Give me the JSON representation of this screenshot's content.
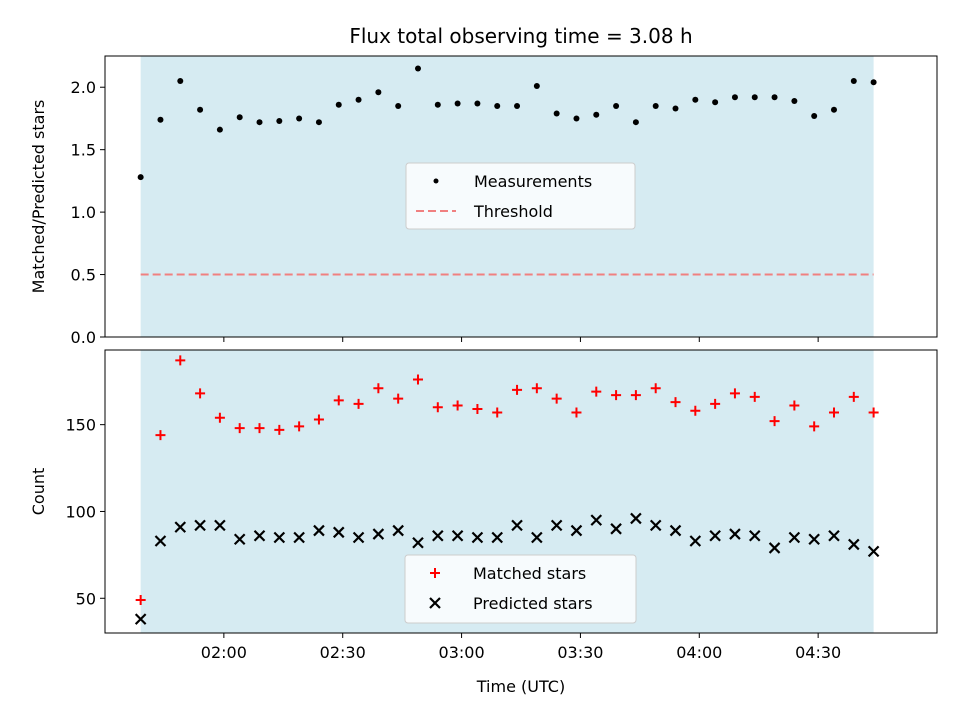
{
  "chart_data": {
    "type": "scatter",
    "title": "Flux total observing time = 3.08 h",
    "xlabel": "Time (UTC)",
    "x_tick_labels": [
      "02:00",
      "02:30",
      "03:00",
      "03:30",
      "04:00",
      "04:30"
    ],
    "x_ticks": [
      "02:00",
      "02:30",
      "03:00",
      "03:30",
      "04:00",
      "04:30"
    ],
    "xlim": [
      "01:30",
      "05:00"
    ],
    "shaded_region": {
      "start": "01:39",
      "end": "04:44",
      "color": "#add8e6"
    },
    "time_points": [
      "01:39",
      "01:44",
      "01:49",
      "01:54",
      "01:59",
      "02:04",
      "02:09",
      "02:14",
      "02:19",
      "02:24",
      "02:29",
      "02:34",
      "02:39",
      "02:44",
      "02:49",
      "02:54",
      "02:59",
      "03:04",
      "03:09",
      "03:14",
      "03:19",
      "03:24",
      "03:29",
      "03:34",
      "03:39",
      "03:44",
      "03:49",
      "03:54",
      "03:59",
      "04:04",
      "04:09",
      "04:14",
      "04:19",
      "04:24",
      "04:29",
      "04:34",
      "04:39",
      "04:44"
    ],
    "panels": [
      {
        "ylabel": "Matched/Predicted stars",
        "ylim": [
          0,
          2.25
        ],
        "y_ticks": [
          0.0,
          0.5,
          1.0,
          1.5,
          2.0
        ],
        "y_tick_labels": [
          "0.0",
          "0.5",
          "1.0",
          "1.5",
          "2.0"
        ],
        "legend_position": "center",
        "series": [
          {
            "name": "Measurements",
            "marker": "dot",
            "color": "#000000",
            "values": [
              1.28,
              1.74,
              2.05,
              1.82,
              1.66,
              1.76,
              1.72,
              1.73,
              1.75,
              1.72,
              1.86,
              1.9,
              1.96,
              1.85,
              2.15,
              1.86,
              1.87,
              1.87,
              1.85,
              1.85,
              2.01,
              1.79,
              1.75,
              1.78,
              1.85,
              1.72,
              1.85,
              1.83,
              1.9,
              1.88,
              1.92,
              1.92,
              1.92,
              1.89,
              1.77,
              1.82,
              2.05,
              2.04
            ]
          },
          {
            "name": "Threshold",
            "marker": "dashed-line",
            "color": "#f08080",
            "values": [
              0.5,
              0.5
            ]
          }
        ]
      },
      {
        "ylabel": "Count",
        "ylim": [
          30,
          193
        ],
        "y_ticks": [
          50,
          100,
          150
        ],
        "y_tick_labels": [
          "50",
          "100",
          "150"
        ],
        "legend_position": "lower center",
        "series": [
          {
            "name": "Matched stars",
            "marker": "plus",
            "color": "#ff0000",
            "values": [
              49,
              144,
              187,
              168,
              154,
              148,
              148,
              147,
              149,
              153,
              164,
              162,
              171,
              165,
              176,
              160,
              161,
              159,
              157,
              170,
              171,
              165,
              157,
              169,
              167,
              167,
              171,
              163,
              158,
              162,
              168,
              166,
              152,
              161,
              149,
              157,
              166,
              157
            ]
          },
          {
            "name": "Predicted stars",
            "marker": "x",
            "color": "#000000",
            "values": [
              38,
              83,
              91,
              92,
              92,
              84,
              86,
              85,
              85,
              89,
              88,
              85,
              87,
              89,
              82,
              86,
              86,
              85,
              85,
              92,
              85,
              92,
              89,
              95,
              90,
              96,
              92,
              89,
              83,
              86,
              87,
              86,
              79,
              85,
              84,
              86,
              81,
              77
            ]
          }
        ]
      }
    ]
  }
}
